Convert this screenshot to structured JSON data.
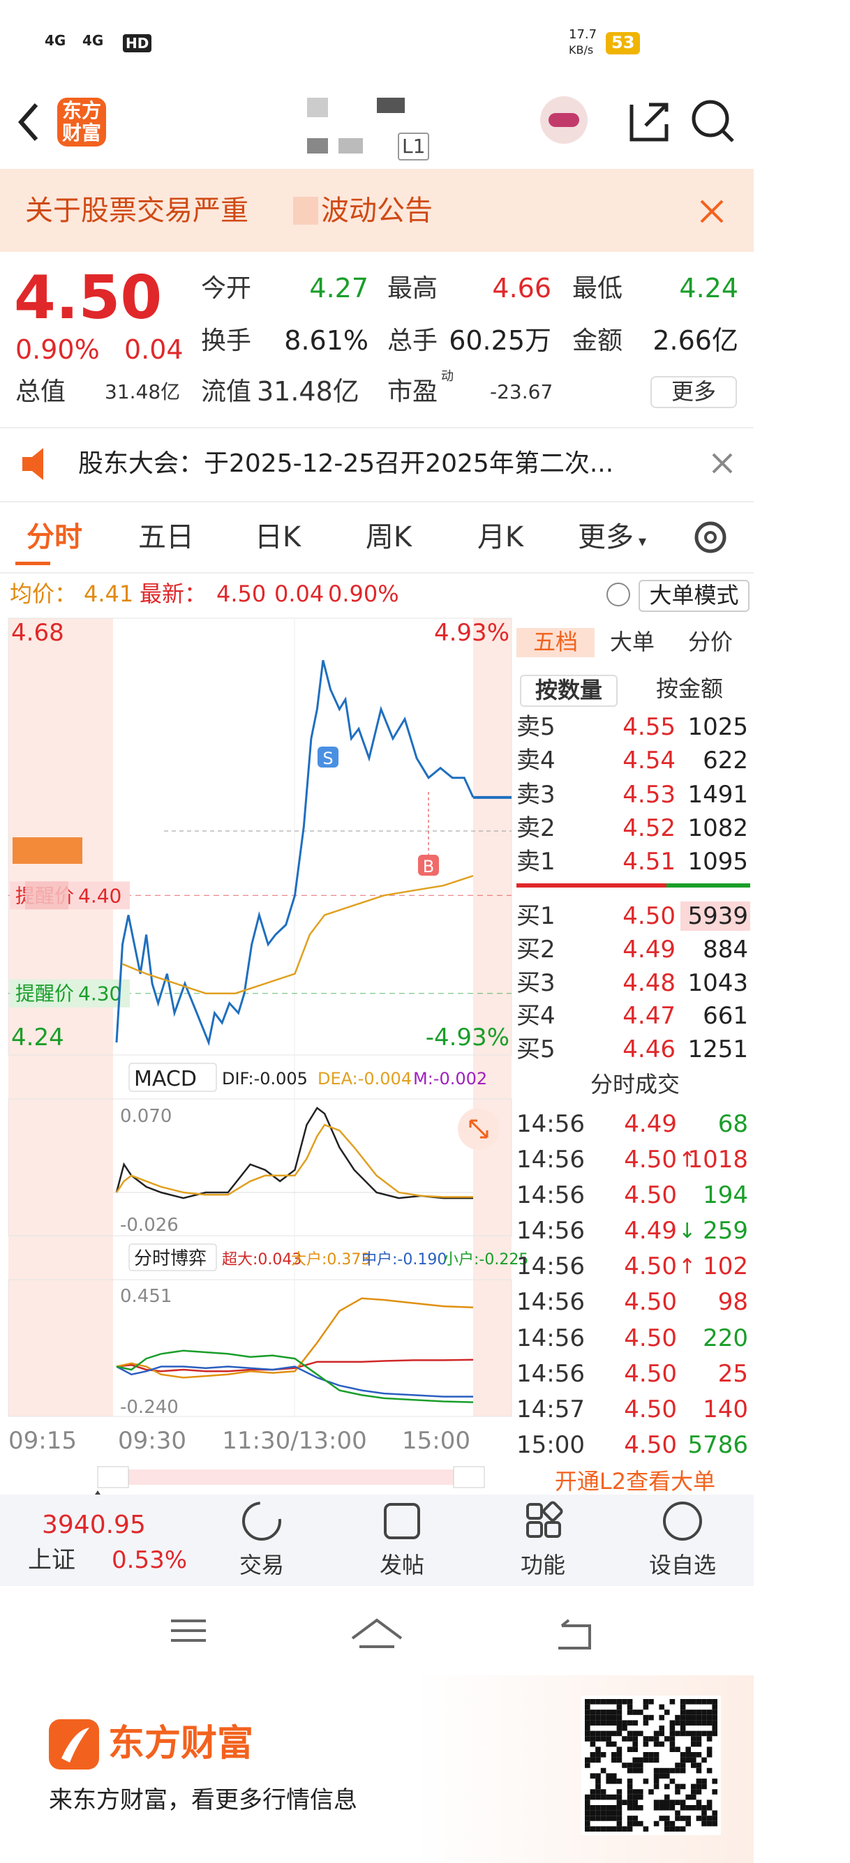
{
  "status_bar": {
    "net_1": "4G",
    "net_2": "4G",
    "hd": "HD",
    "speed": "17.7",
    "speed_unit": "KB/s",
    "battery": "53"
  },
  "header": {
    "logo": "东方财富",
    "level": "L1"
  },
  "notice": {
    "text_start": "关于股票交易严重",
    "text_end": "波动公告"
  },
  "quote": {
    "price": "4.50",
    "change_pct": "0.90%",
    "change": "0.04",
    "fields": [
      {
        "label": "今开",
        "value": "4.27",
        "color": "#1a9e2a"
      },
      {
        "label": "最高",
        "value": "4.66",
        "color": "#e0282a"
      },
      {
        "label": "最低",
        "value": "4.24",
        "color": "#1a9e2a"
      },
      {
        "label": "换手",
        "value": "8.61%",
        "color": "#222222"
      },
      {
        "label": "总手",
        "value": "60.25万",
        "color": "#222222"
      },
      {
        "label": "金额",
        "value": "2.66亿",
        "color": "#222222"
      }
    ],
    "cap_label": "总值",
    "cap": "31.48亿",
    "float_label": "流值",
    "float": "31.48亿",
    "pe_label": "市盈",
    "pe_tag": "动",
    "pe": "-23.67",
    "more": "更多"
  },
  "announcement": "股东大会：于2025-12-25召开2025年第二次...",
  "tabs": [
    "分时",
    "五日",
    "日K",
    "周K",
    "月K",
    "更多"
  ],
  "summary": {
    "avg_label": "均价：",
    "avg": "4.41",
    "latest_label": "最新：",
    "latest": "4.50",
    "change": "0.04",
    "pct": "0.90%",
    "mode": "大单模式"
  },
  "chart": {
    "high": "4.68",
    "low": "4.24",
    "high_pct": "4.93%",
    "low_pct": "-4.93%",
    "alerts": [
      {
        "label": "提醒价",
        "price": "4.40",
        "color": "#e0282a"
      },
      {
        "label": "提醒价",
        "price": "4.30",
        "color": "#1a9e2a"
      }
    ],
    "markers": [
      "S",
      "B"
    ],
    "price": {
      "color": "#1f6fbf",
      "x": [
        0,
        4,
        8,
        12,
        16,
        20,
        24,
        28,
        34,
        39,
        46,
        54,
        62,
        66,
        71,
        76,
        82,
        86,
        91,
        96,
        102,
        107,
        114,
        120,
        126,
        131,
        135,
        139,
        144,
        150,
        154,
        158,
        163,
        170,
        178,
        186,
        194,
        202,
        210,
        218,
        226,
        234,
        240
      ],
      "values": [
        4.25,
        4.35,
        4.38,
        4.35,
        4.32,
        4.36,
        4.31,
        4.29,
        4.32,
        4.28,
        4.31,
        4.28,
        4.25,
        4.28,
        4.27,
        4.29,
        4.28,
        4.3,
        4.35,
        4.38,
        4.35,
        4.36,
        4.37,
        4.4,
        4.47,
        4.56,
        4.59,
        4.64,
        4.61,
        4.59,
        4.6,
        4.56,
        4.57,
        4.54,
        4.59,
        4.56,
        4.58,
        4.54,
        4.52,
        4.53,
        4.52,
        4.52,
        4.5
      ]
    },
    "average": {
      "color": "#e0a020",
      "x": [
        4,
        20,
        40,
        60,
        80,
        100,
        120,
        130,
        140,
        160,
        180,
        200,
        220,
        240
      ],
      "values": [
        4.33,
        4.32,
        4.31,
        4.3,
        4.3,
        4.31,
        4.32,
        4.36,
        4.38,
        4.39,
        4.4,
        4.405,
        4.41,
        4.42
      ]
    }
  },
  "macd": {
    "name": "MACD",
    "dif": "DIF:-0.005",
    "dea": "DEA:-0.004",
    "m": "M:-0.002",
    "top": "0.070",
    "bottom": "-0.026",
    "series": [
      {
        "color": "#222222",
        "x": [
          0,
          5,
          10,
          20,
          30,
          45,
          60,
          75,
          90,
          100,
          110,
          120,
          128,
          135,
          140,
          150,
          160,
          175,
          190,
          205,
          220,
          240
        ],
        "values": [
          0.0,
          0.025,
          0.015,
          0.005,
          0.0,
          -0.005,
          0.0,
          0.0,
          0.025,
          0.02,
          0.01,
          0.02,
          0.06,
          0.075,
          0.07,
          0.04,
          0.02,
          0.0,
          -0.005,
          -0.003,
          -0.005,
          -0.005
        ]
      },
      {
        "color": "#e0a020",
        "x": [
          0,
          5,
          10,
          20,
          30,
          45,
          60,
          75,
          90,
          100,
          110,
          120,
          128,
          135,
          140,
          150,
          160,
          175,
          190,
          205,
          220,
          240
        ],
        "values": [
          0.0,
          0.01,
          0.015,
          0.01,
          0.005,
          0.0,
          -0.002,
          -0.002,
          0.01,
          0.015,
          0.015,
          0.015,
          0.03,
          0.05,
          0.06,
          0.055,
          0.04,
          0.015,
          0.0,
          -0.003,
          -0.004,
          -0.004
        ]
      }
    ]
  },
  "game": {
    "name": "分时博弈",
    "top": "0.451",
    "bottom": "-0.240",
    "legend": [
      {
        "text": "超大:0.043",
        "color": "#d02828"
      },
      {
        "text": "大户:0.373",
        "color": "#e09010"
      },
      {
        "text": "中户:-0.190",
        "color": "#2a5fc0"
      },
      {
        "text": "小户:-0.225",
        "color": "#1a9e2a"
      }
    ],
    "x": [
      0,
      10,
      20,
      30,
      45,
      60,
      75,
      90,
      105,
      120,
      135,
      150,
      165,
      180,
      200,
      220,
      240
    ],
    "series": [
      {
        "color": "#d02828",
        "values": [
          0,
          0.01,
          -0.02,
          -0.03,
          -0.02,
          -0.03,
          -0.03,
          -0.02,
          -0.02,
          -0.01,
          0.03,
          0.03,
          0.03,
          0.035,
          0.04,
          0.04,
          0.043
        ]
      },
      {
        "color": "#e09010",
        "values": [
          0,
          0.02,
          0.0,
          -0.05,
          -0.07,
          -0.06,
          -0.05,
          -0.03,
          -0.04,
          -0.03,
          0.15,
          0.35,
          0.43,
          0.42,
          0.4,
          0.38,
          0.373
        ]
      },
      {
        "color": "#2a5fc0",
        "values": [
          0,
          -0.05,
          -0.03,
          0.0,
          0.0,
          -0.01,
          0.0,
          -0.01,
          -0.02,
          0.0,
          -0.07,
          -0.12,
          -0.15,
          -0.17,
          -0.18,
          -0.19,
          -0.19
        ]
      },
      {
        "color": "#1a9e2a",
        "values": [
          0,
          -0.02,
          0.05,
          0.08,
          0.1,
          0.09,
          0.08,
          0.06,
          0.07,
          0.05,
          -0.05,
          -0.15,
          -0.18,
          -0.2,
          -0.21,
          -0.22,
          -0.225
        ]
      }
    ]
  },
  "times": [
    "09:15",
    "09:30",
    "11:30/13:00",
    "15:00"
  ],
  "order_book": {
    "tabs": [
      "五档",
      "大单",
      "分价"
    ],
    "modes": [
      "按数量",
      "按金额"
    ],
    "asks": [
      {
        "label": "卖5",
        "price": "4.55",
        "volume": "1025"
      },
      {
        "label": "卖4",
        "price": "4.54",
        "volume": "622"
      },
      {
        "label": "卖3",
        "price": "4.53",
        "volume": "1491"
      },
      {
        "label": "卖2",
        "price": "4.52",
        "volume": "1082"
      },
      {
        "label": "卖1",
        "price": "4.51",
        "volume": "1095"
      }
    ],
    "bids": [
      {
        "label": "买1",
        "price": "4.50",
        "volume": "5939"
      },
      {
        "label": "买2",
        "price": "4.49",
        "volume": "884"
      },
      {
        "label": "买3",
        "price": "4.48",
        "volume": "1043"
      },
      {
        "label": "买4",
        "price": "4.47",
        "volume": "661"
      },
      {
        "label": "买5",
        "price": "4.46",
        "volume": "1251"
      }
    ]
  },
  "trades": {
    "title": "分时成交",
    "rows": [
      {
        "time": "14:56",
        "price": "4.49",
        "arrow": "",
        "volume": "68",
        "color": "#1a9e2a"
      },
      {
        "time": "14:56",
        "price": "4.50",
        "arrow": "↑",
        "volume": "1018",
        "color": "#e0282a"
      },
      {
        "time": "14:56",
        "price": "4.50",
        "arrow": "",
        "volume": "194",
        "color": "#1a9e2a"
      },
      {
        "time": "14:56",
        "price": "4.49",
        "arrow": "↓",
        "volume": "259",
        "color": "#1a9e2a"
      },
      {
        "time": "14:56",
        "price": "4.50",
        "arrow": "↑",
        "volume": "102",
        "color": "#e0282a"
      },
      {
        "time": "14:56",
        "price": "4.50",
        "arrow": "",
        "volume": "98",
        "color": "#e0282a"
      },
      {
        "time": "14:56",
        "price": "4.50",
        "arrow": "",
        "volume": "220",
        "color": "#1a9e2a"
      },
      {
        "time": "14:56",
        "price": "4.50",
        "arrow": "",
        "volume": "25",
        "color": "#e0282a"
      },
      {
        "time": "14:57",
        "price": "4.50",
        "arrow": "",
        "volume": "140",
        "color": "#e0282a"
      },
      {
        "time": "15:00",
        "price": "4.50",
        "arrow": "",
        "volume": "5786",
        "color": "#1a9e2a"
      }
    ],
    "l2": "开通L2查看大单"
  },
  "bottom_nav": {
    "index_value": "3940.95",
    "index_name": "上证",
    "index_pct": "0.53%",
    "items": [
      "交易",
      "发帖",
      "功能",
      "设自选"
    ]
  },
  "footer": {
    "brand": "东方财富",
    "slogan": "来东方财富，看更多行情信息"
  }
}
